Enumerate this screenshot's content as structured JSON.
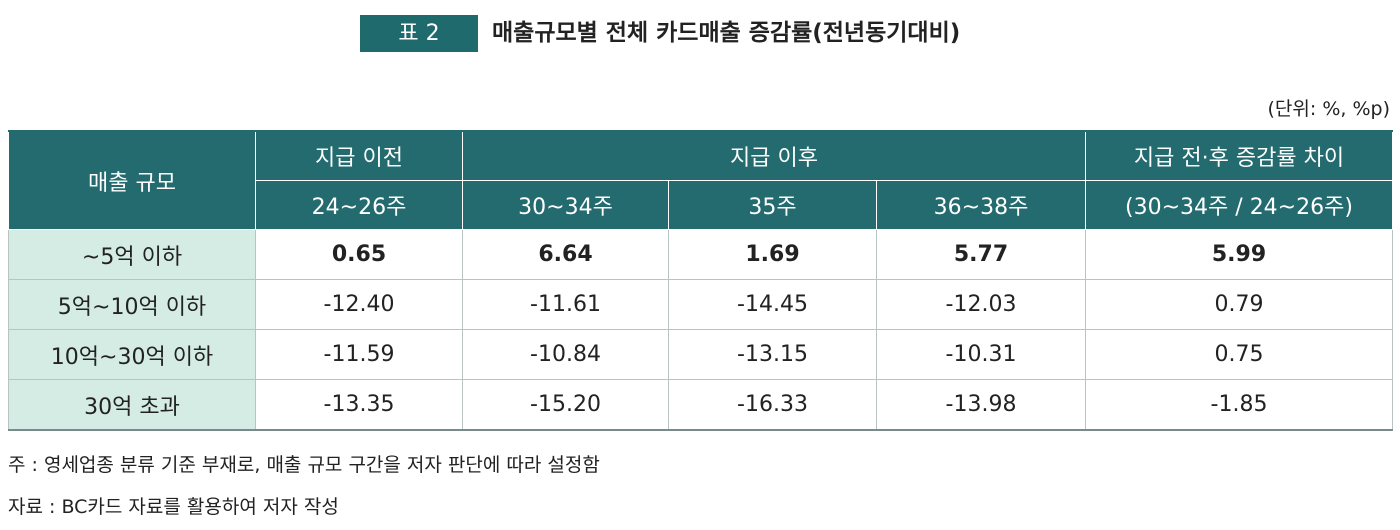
{
  "title": {
    "badge": "표 2",
    "text": "매출규모별 전체 카드매출 증감률(전년동기대비)"
  },
  "unit": "(단위: %, %p)",
  "table": {
    "header": {
      "size": "매출 규모",
      "before": "지급 이전",
      "after": "지급 이후",
      "diff": "지급 전·후 증감률 차이",
      "diff_sub": "(30~34주 / 24~26주)",
      "weeks": [
        "24~26주",
        "30~34주",
        "35주",
        "36~38주"
      ]
    },
    "rows": [
      [
        "~5억 이하",
        "0.65",
        "6.64",
        "1.69",
        "5.77",
        "5.99"
      ],
      [
        "5억~10억 이하",
        "-12.40",
        "-11.61",
        "-14.45",
        "-12.03",
        "0.79"
      ],
      [
        "10억~30억 이하",
        "-11.59",
        "-10.84",
        "-13.15",
        "-10.31",
        "0.75"
      ],
      [
        "30억 초과",
        "-13.35",
        "-15.20",
        "-16.33",
        "-13.98",
        "-1.85"
      ]
    ]
  },
  "notes": [
    "주 : 영세업종 분류 기준 부재로, 매출 규모 구간을 저자 판단에 따라 설정함",
    "자료 : BC카드 자료를 활용하여 저자 작성"
  ]
}
